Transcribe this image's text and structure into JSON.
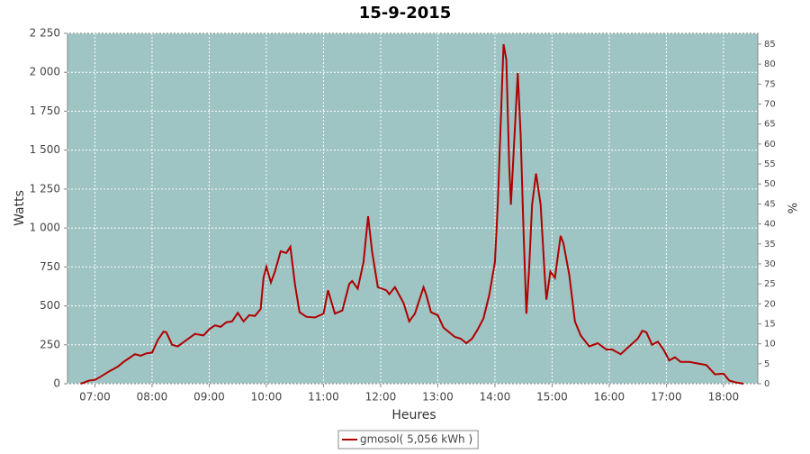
{
  "chart_data": {
    "type": "line",
    "title": "15-9-2015",
    "xlabel": "Heures",
    "ylabel": "Watts",
    "y2label": "%",
    "x": [
      6.75,
      6.9,
      7.0,
      7.1,
      7.25,
      7.4,
      7.5,
      7.6,
      7.7,
      7.8,
      7.9,
      8.0,
      8.1,
      8.2,
      8.25,
      8.35,
      8.45,
      8.6,
      8.75,
      8.9,
      9.0,
      9.1,
      9.2,
      9.3,
      9.4,
      9.5,
      9.6,
      9.7,
      9.8,
      9.9,
      9.95,
      10.0,
      10.08,
      10.15,
      10.25,
      10.35,
      10.42,
      10.5,
      10.58,
      10.7,
      10.85,
      11.0,
      11.08,
      11.2,
      11.33,
      11.45,
      11.5,
      11.6,
      11.7,
      11.78,
      11.85,
      11.95,
      12.1,
      12.15,
      12.25,
      12.4,
      12.5,
      12.6,
      12.75,
      12.8,
      12.88,
      13.0,
      13.1,
      13.2,
      13.3,
      13.4,
      13.5,
      13.6,
      13.7,
      13.8,
      13.9,
      14.0,
      14.05,
      14.15,
      14.2,
      14.25,
      14.28,
      14.35,
      14.4,
      14.45,
      14.5,
      14.55,
      14.6,
      14.65,
      14.72,
      14.8,
      14.87,
      14.9,
      14.97,
      15.05,
      15.15,
      15.2,
      15.3,
      15.4,
      15.5,
      15.65,
      15.8,
      15.95,
      16.05,
      16.2,
      16.35,
      16.5,
      16.58,
      16.65,
      16.75,
      16.85,
      16.95,
      17.05,
      17.15,
      17.25,
      17.4,
      17.55,
      17.7,
      17.85,
      18.0,
      18.1,
      18.2,
      18.35
    ],
    "series": [
      {
        "name": "gmosol( 5,056 kWh )",
        "color": "#b00000",
        "values": [
          0,
          20,
          25,
          45,
          80,
          110,
          140,
          165,
          190,
          180,
          195,
          200,
          280,
          335,
          330,
          250,
          240,
          280,
          320,
          310,
          350,
          375,
          365,
          395,
          400,
          455,
          400,
          440,
          435,
          480,
          680,
          750,
          650,
          720,
          850,
          840,
          880,
          640,
          460,
          430,
          425,
          450,
          600,
          450,
          470,
          640,
          660,
          610,
          780,
          1075,
          850,
          620,
          600,
          575,
          620,
          520,
          400,
          450,
          620,
          570,
          460,
          440,
          360,
          330,
          300,
          290,
          260,
          290,
          350,
          420,
          570,
          780,
          1150,
          2180,
          2080,
          1400,
          1150,
          1650,
          1995,
          1600,
          980,
          450,
          750,
          1150,
          1350,
          1150,
          700,
          540,
          720,
          680,
          950,
          900,
          700,
          400,
          310,
          240,
          260,
          220,
          220,
          190,
          240,
          290,
          340,
          330,
          250,
          270,
          220,
          150,
          170,
          140,
          140,
          130,
          120,
          60,
          65,
          20,
          10,
          0
        ]
      }
    ],
    "xlim": [
      6.52,
      18.6
    ],
    "xticks": [
      {
        "value": 7,
        "label": "07:00"
      },
      {
        "value": 8,
        "label": "08:00"
      },
      {
        "value": 9,
        "label": "09:00"
      },
      {
        "value": 10,
        "label": "10:00"
      },
      {
        "value": 11,
        "label": "11:00"
      },
      {
        "value": 12,
        "label": "12:00"
      },
      {
        "value": 13,
        "label": "13:00"
      },
      {
        "value": 14,
        "label": "14:00"
      },
      {
        "value": 15,
        "label": "15:00"
      },
      {
        "value": 16,
        "label": "16:00"
      },
      {
        "value": 17,
        "label": "17:00"
      },
      {
        "value": 18,
        "label": "18:00"
      }
    ],
    "ylim": [
      0,
      2250
    ],
    "yticks": [
      0,
      250,
      500,
      750,
      {
        "value": 1000,
        "label": "1 000"
      },
      {
        "value": 1250,
        "label": "1 250"
      },
      {
        "value": 1500,
        "label": "1 500"
      },
      {
        "value": 1750,
        "label": "1 750"
      },
      {
        "value": 2000,
        "label": "2 000"
      },
      {
        "value": 2250,
        "label": "2 250"
      }
    ],
    "y2lim": [
      0,
      87.7
    ],
    "y2ticks": [
      0,
      5,
      10,
      15,
      20,
      25,
      30,
      35,
      40,
      45,
      50,
      55,
      60,
      65,
      70,
      75,
      80,
      85
    ],
    "grid": true,
    "background": "#9fc4c4"
  }
}
